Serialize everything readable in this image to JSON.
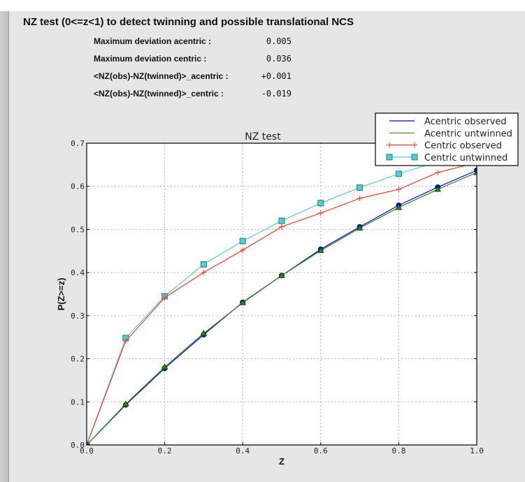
{
  "header": {
    "title": "NZ test (0<=z<1) to detect twinning and possible translational NCS",
    "stats": [
      {
        "label": "Maximum deviation acentric :",
        "value": "0.005"
      },
      {
        "label": "Maximum deviation centric :",
        "value": "0.036"
      },
      {
        "label": "<NZ(obs)-NZ(twinned)>_acentric :",
        "value": "+0.001"
      },
      {
        "label": "<NZ(obs)-NZ(twinned)>_centric :",
        "value": "-0.019"
      }
    ]
  },
  "chart_data": {
    "type": "line",
    "title": "NZ test",
    "xlabel": "Z",
    "ylabel": "P(Z>=z)",
    "xlim": [
      0,
      1.0
    ],
    "ylim": [
      0,
      0.7
    ],
    "xticks": [
      "0.0",
      "0.2",
      "0.4",
      "0.6",
      "0.8",
      "1.0"
    ],
    "yticks": [
      "0.0",
      "0.1",
      "0.2",
      "0.3",
      "0.4",
      "0.5",
      "0.6",
      "0.7"
    ],
    "grid": true,
    "legend": "top-right",
    "x": [
      0.0,
      0.1,
      0.2,
      0.3,
      0.4,
      0.5,
      0.6,
      0.7,
      0.8,
      0.9,
      1.0
    ],
    "series": [
      {
        "name": "Acentric observed",
        "color": "#0000ff",
        "marker": "circle",
        "values": [
          0.0,
          0.093,
          0.178,
          0.256,
          0.331,
          0.393,
          0.454,
          0.506,
          0.556,
          0.598,
          0.637
        ]
      },
      {
        "name": "Acentric untwinned",
        "color": "#2e8b00",
        "marker": "triangle",
        "values": [
          0.0,
          0.095,
          0.181,
          0.259,
          0.33,
          0.393,
          0.451,
          0.503,
          0.551,
          0.593,
          0.632
        ]
      },
      {
        "name": "Centric observed",
        "color": "#ff3b1f",
        "marker": "plus",
        "values": [
          0.0,
          0.241,
          0.342,
          0.4,
          0.452,
          0.506,
          0.538,
          0.572,
          0.593,
          0.632,
          0.655
        ]
      },
      {
        "name": "Centric untwinned",
        "color": "#4fd0d0",
        "marker": "square",
        "values": [
          0.0,
          0.248,
          0.345,
          0.419,
          0.473,
          0.52,
          0.561,
          0.597,
          0.629,
          0.657,
          0.683
        ]
      }
    ]
  }
}
